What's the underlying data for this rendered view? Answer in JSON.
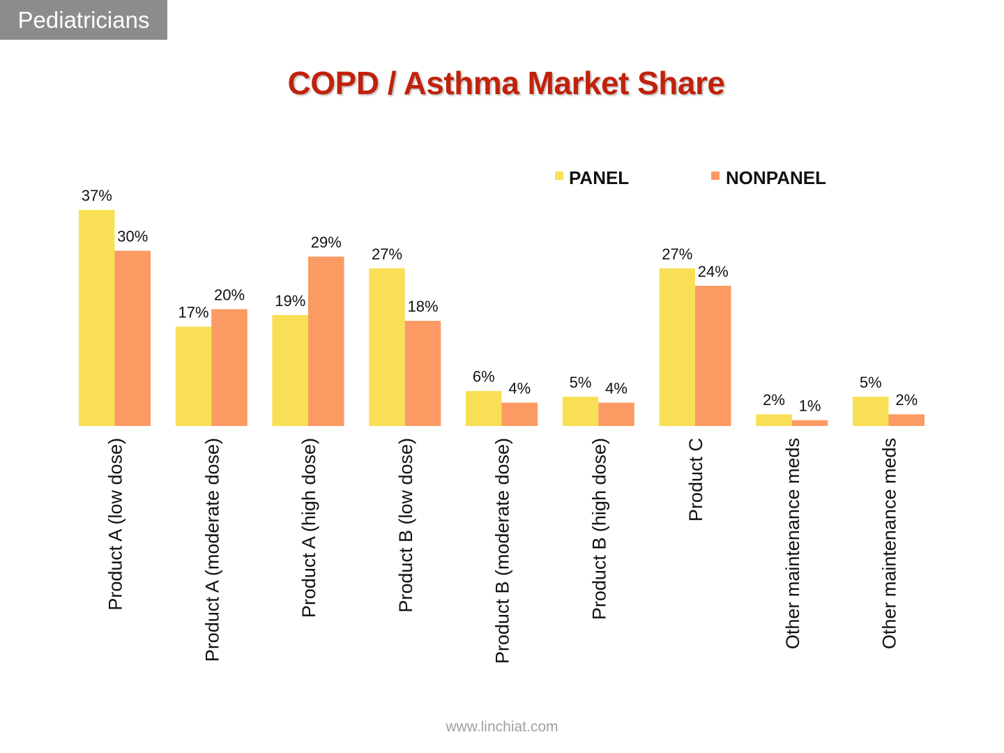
{
  "header": {
    "tag": "Pediatricians"
  },
  "footer": {
    "url": "www.linchiat.com"
  },
  "colors": {
    "title": "#c0220c",
    "panel": "#f9df55",
    "nonpanel": "#fb9a62",
    "text": "#111111"
  },
  "chart_data": {
    "type": "bar",
    "title": "COPD / Asthma Market Share",
    "xlabel": "",
    "ylabel": "",
    "ylim": [
      0,
      37
    ],
    "grid": false,
    "legend_position": "top-right",
    "categories": [
      "Product A (low dose)",
      "Product A (moderate dose)",
      "Product A (high dose)",
      "Product B (low dose)",
      "Product B (moderate dose)",
      "Product B (high dose)",
      "Product C",
      "Other maintenance meds",
      "Other maintenance meds"
    ],
    "series": [
      {
        "name": "PANEL",
        "values": [
          37,
          17,
          19,
          27,
          6,
          5,
          27,
          2,
          5
        ],
        "labels": [
          "37%",
          "17%",
          "19%",
          "27%",
          "6%",
          "5%",
          "27%",
          "2%",
          "5%"
        ]
      },
      {
        "name": "NONPANEL",
        "values": [
          30,
          20,
          29,
          18,
          4,
          4,
          24,
          1,
          2
        ],
        "labels": [
          "30%",
          "20%",
          "29%",
          "18%",
          "4%",
          "4%",
          "24%",
          "1%",
          "2%"
        ]
      }
    ]
  }
}
